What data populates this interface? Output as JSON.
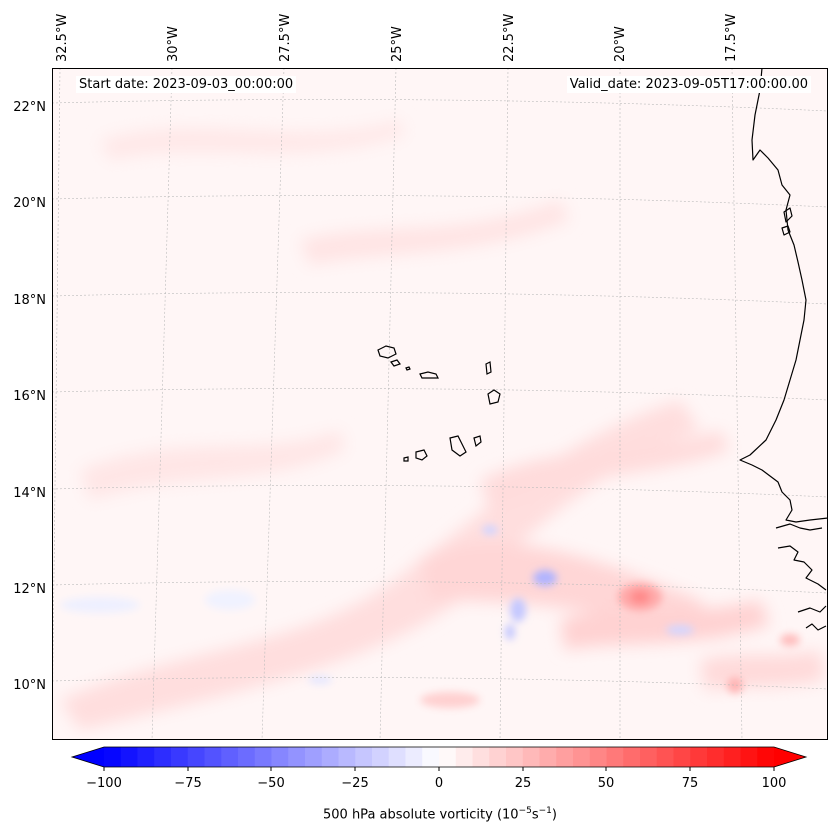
{
  "map": {
    "start_label": "Start date: 2023-09-03_00:00:00",
    "valid_label": "Valid_date: 2023-09-05T17:00:00.00",
    "lon_labels": [
      "32.5°W",
      "30°W",
      "27.5°W",
      "25°W",
      "22.5°W",
      "20°W",
      "17.5°W"
    ],
    "lat_labels": [
      "22°N",
      "20°N",
      "18°N",
      "16°N",
      "14°N",
      "12°N",
      "10°N"
    ],
    "colors": {
      "coast": "#000000",
      "grid": "#bbbbbb",
      "positive": "#ff0000",
      "negative": "#0000ff"
    }
  },
  "colorbar": {
    "variable": "500 hPa absolute vorticity",
    "units_prefix": "(10",
    "units_exp1": "−5",
    "units_mid": "s",
    "units_exp2": "−1",
    "units_suffix": ")",
    "tick_labels": [
      "−100",
      "−75",
      "−50",
      "−25",
      "0",
      "25",
      "50",
      "75",
      "100"
    ],
    "range": [
      -100,
      100
    ],
    "colormap": "bwr",
    "extend": "both"
  }
}
